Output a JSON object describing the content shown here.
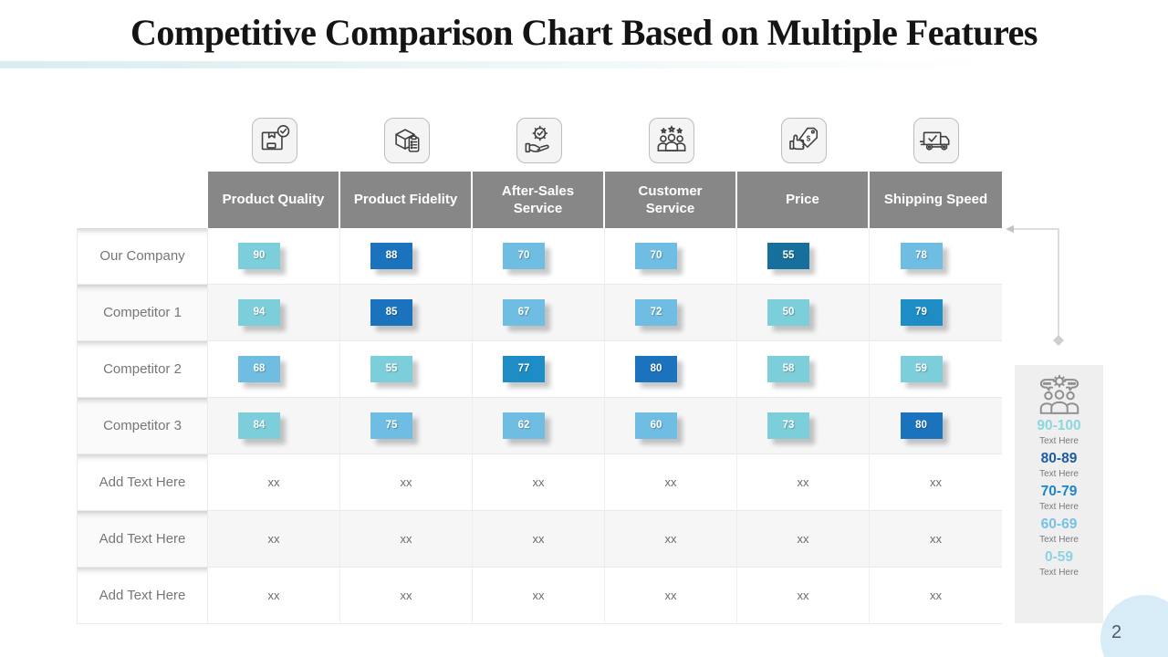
{
  "slide": {
    "title": "Competitive Comparison Chart Based on Multiple Features",
    "page_number": "2"
  },
  "chart_data": {
    "type": "table",
    "title": "Competitive Comparison Chart Based on Multiple Features",
    "columns": [
      "Product Quality",
      "Product Fidelity",
      "After-Sales Service",
      "Customer Service",
      "Price",
      "Shipping Speed"
    ],
    "column_icons": [
      "product-quality-icon",
      "product-fidelity-icon",
      "after-sales-service-icon",
      "customer-service-icon",
      "price-icon",
      "shipping-speed-icon"
    ],
    "rows": [
      {
        "label": "Our Company",
        "values": [
          90,
          88,
          70,
          70,
          55,
          78
        ],
        "tiers": [
          "teal",
          "darkblue",
          "lightblue",
          "lightblue",
          "darkteal",
          "lightblue"
        ]
      },
      {
        "label": "Competitor 1",
        "values": [
          94,
          85,
          67,
          72,
          50,
          79
        ],
        "tiers": [
          "teal",
          "darkblue",
          "lightblue",
          "lightblue",
          "teal",
          "mediumblue"
        ]
      },
      {
        "label": "Competitor 2",
        "values": [
          68,
          55,
          77,
          80,
          58,
          59
        ],
        "tiers": [
          "lightblue",
          "teal",
          "mediumblue",
          "darkblue",
          "teal",
          "teal"
        ]
      },
      {
        "label": "Competitor 3",
        "values": [
          84,
          75,
          62,
          60,
          73,
          80
        ],
        "tiers": [
          "teal",
          "lightblue",
          "lightblue",
          "lightblue",
          "teal",
          "darkblue"
        ]
      },
      {
        "label": "Add Text Here",
        "values": [
          "xx",
          "xx",
          "xx",
          "xx",
          "xx",
          "xx"
        ],
        "tiers": null
      },
      {
        "label": "Add Text Here",
        "values": [
          "xx",
          "xx",
          "xx",
          "xx",
          "xx",
          "xx"
        ],
        "tiers": null
      },
      {
        "label": "Add Text Here",
        "values": [
          "xx",
          "xx",
          "xx",
          "xx",
          "xx",
          "xx"
        ],
        "tiers": null
      }
    ],
    "legend": {
      "icon": "team-discussion-icon",
      "entries": [
        {
          "range": "90-100",
          "label": "Text Here",
          "color": "#8BD7E1"
        },
        {
          "range": "80-89",
          "label": "Text Here",
          "color": "#1E5CA4"
        },
        {
          "range": "70-79",
          "label": "Text Here",
          "color": "#1C86C8"
        },
        {
          "range": "60-69",
          "label": "Text Here",
          "color": "#79C1E4"
        },
        {
          "range": "0-59",
          "label": "Text Here",
          "color": "#8DD1E2"
        }
      ]
    }
  },
  "colors": {
    "header_bg": "#878787",
    "tiers": {
      "teal": "#7CCEDA",
      "lightblue": "#6FBDE2",
      "mediumblue": "#1E8DC6",
      "darkblue": "#1B73BE",
      "darkteal": "#176F9B"
    }
  }
}
